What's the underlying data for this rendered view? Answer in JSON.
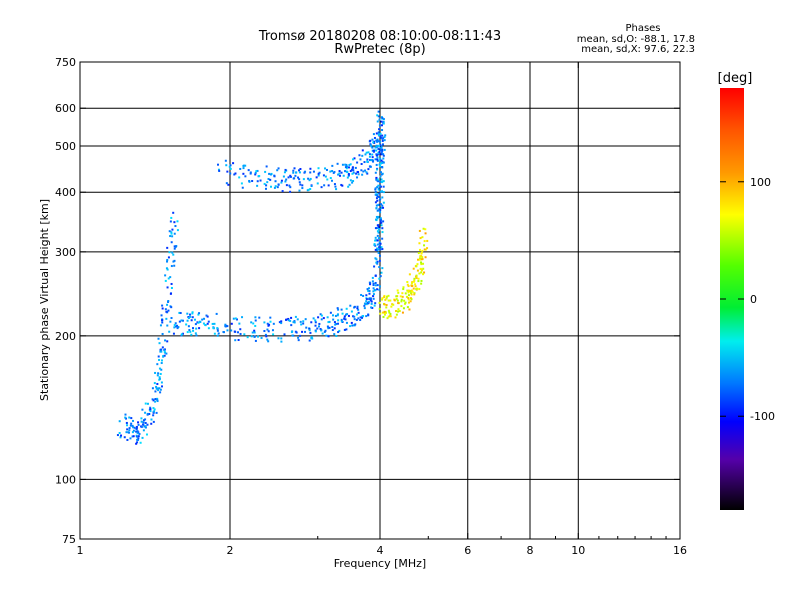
{
  "chart_data": {
    "type": "scatter",
    "title": "Tromsø 20180208 08:10:00-08:11:43",
    "subtitle": "RwPretec (8p)",
    "xlabel": "Frequency [MHz]",
    "ylabel": "Stationary phase Virtual Height [km]",
    "x_scale": "log",
    "y_scale": "log",
    "xlim": [
      1,
      16
    ],
    "ylim": [
      75,
      750
    ],
    "x_ticks": [
      1,
      2,
      4,
      6,
      8,
      10,
      16
    ],
    "y_ticks": [
      75,
      100,
      200,
      300,
      400,
      500,
      600,
      750
    ],
    "grid": true,
    "legend": {
      "title": "Phases",
      "lines": [
        "mean, sd,O: -88.1, 17.8",
        "mean, sd,X:  97.6, 22.3"
      ],
      "position": "top-right"
    },
    "colorbar": {
      "label": "[deg]",
      "range": [
        -180,
        180
      ],
      "ticks": [
        100,
        0,
        -100
      ],
      "colormap": "rainbow"
    },
    "series": [
      {
        "mode": "O",
        "color_value": -100,
        "points": [
          {
            "name": "upper-trace",
            "x": [
              1.9,
              2.3,
              2.7,
              3.1,
              3.5,
              3.8,
              3.95
            ],
            "y": [
              440,
              430,
              425,
              428,
              440,
              470,
              520
            ]
          },
          {
            "name": "lower-trace",
            "x": [
              1.5,
              1.7,
              2.0,
              2.4,
              2.8,
              3.2,
              3.5,
              3.8,
              3.95
            ],
            "y": [
              215,
              212,
              208,
              206,
              207,
              212,
              220,
              235,
              260
            ]
          },
          {
            "name": "cusp-column",
            "x": [
              3.97,
              3.98,
              3.99,
              4.0,
              4.01,
              4.02
            ],
            "y": [
              280,
              330,
              380,
              440,
              500,
              560
            ]
          },
          {
            "name": "low-band",
            "x": [
              1.2,
              1.3,
              1.4,
              1.45,
              1.5,
              1.55
            ],
            "y": [
              130,
              125,
              140,
              170,
              250,
              350
            ]
          }
        ]
      },
      {
        "mode": "X",
        "color_value": 100,
        "points": [
          {
            "name": "x-trace",
            "x": [
              4.0,
              4.3,
              4.6,
              4.8,
              4.9
            ],
            "y": [
              228,
              232,
              245,
              270,
              330
            ]
          }
        ]
      }
    ]
  }
}
